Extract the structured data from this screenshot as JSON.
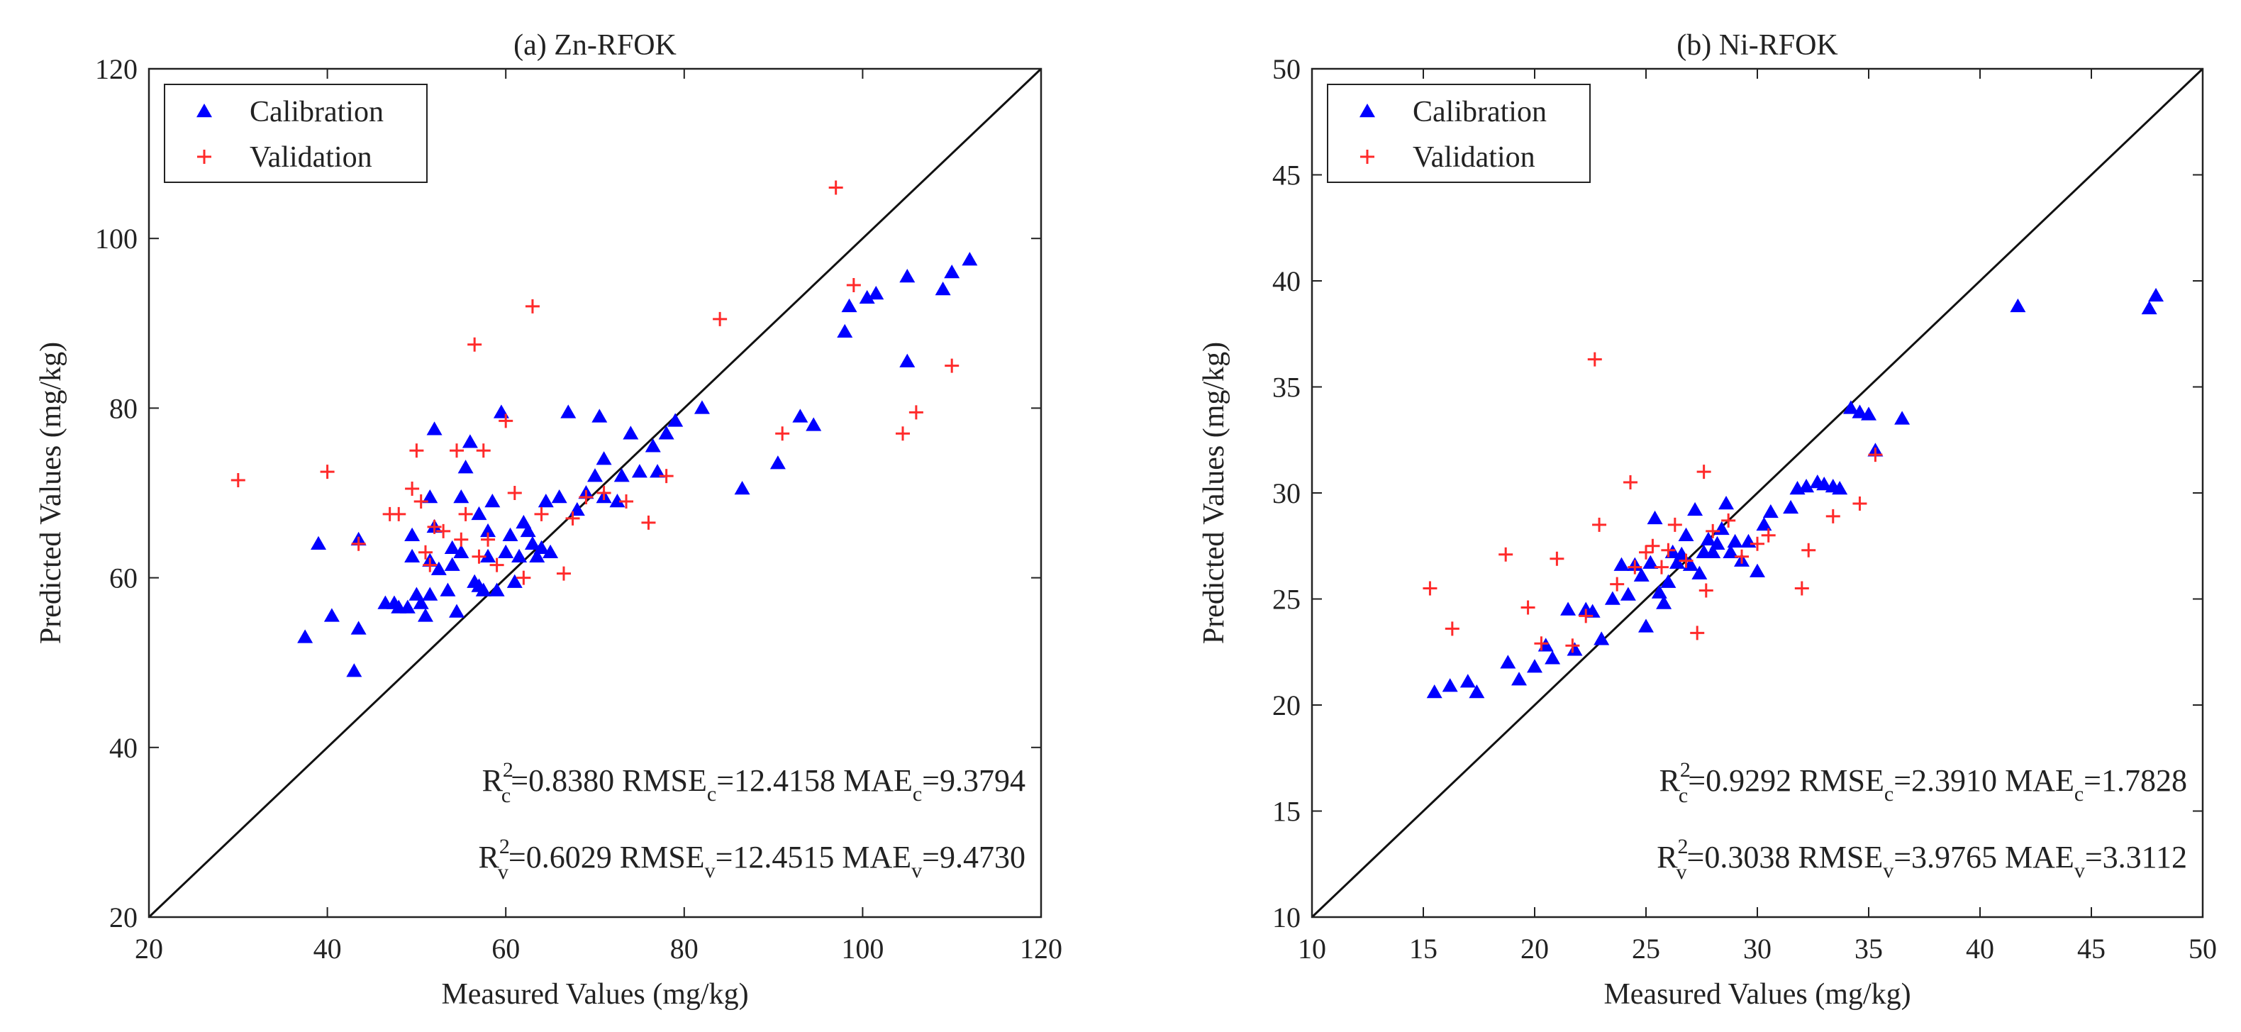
{
  "chart_data": [
    {
      "type": "scatter",
      "title": "(a) Zn-RFOK",
      "xlabel": "Measured Values (mg/kg)",
      "ylabel": "Predicted Values (mg/kg)",
      "xlim": [
        20,
        120
      ],
      "ylim": [
        20,
        120
      ],
      "xticks": [
        20,
        40,
        60,
        80,
        100,
        120
      ],
      "yticks": [
        20,
        40,
        60,
        80,
        100,
        120
      ],
      "grid": false,
      "reference_line": "y = x",
      "legend": {
        "position": "top-left",
        "entries": [
          {
            "label": "Calibration",
            "marker": "triangle",
            "color": "#0000ff"
          },
          {
            "label": "Validation",
            "marker": "plus",
            "color": "#ff2a2a"
          }
        ]
      },
      "metrics": {
        "calibration": {
          "r2_label": "R",
          "r2_sup": "2",
          "r2_sub": "c",
          "r2": "=0.8380",
          "rmse_label": " RMSE",
          "rmse_sub": "c",
          "rmse": "=12.4158",
          "mae_label": " MAE",
          "mae_sub": "c",
          "mae": "=9.3794"
        },
        "validation": {
          "r2_label": "R",
          "r2_sup": "2",
          "r2_sub": "v",
          "r2": "=0.6029",
          "rmse_label": " RMSE",
          "rmse_sub": "v",
          "rmse": "=12.4515",
          "mae_label": " MAE",
          "mae_sub": "v",
          "mae": "=9.4730"
        }
      },
      "series": [
        {
          "name": "Calibration",
          "marker": "triangle",
          "color": "#0000ff",
          "x": [
            37.5,
            39,
            40.5,
            43,
            43.5,
            43.5,
            46.5,
            47.5,
            48,
            49,
            49.5,
            49.5,
            50,
            50.5,
            51,
            51.5,
            51.5,
            51.5,
            52,
            52,
            52.5,
            53.5,
            54,
            54,
            54.5,
            55,
            55,
            55.5,
            56,
            56.5,
            57,
            57,
            57.5,
            58,
            58,
            58.5,
            59,
            59.5,
            60,
            60.5,
            61,
            61.5,
            62,
            62.5,
            63,
            63.5,
            64,
            64.5,
            65,
            66,
            67,
            68,
            69,
            70,
            70.5,
            71,
            71,
            72.5,
            73,
            74,
            75,
            76.5,
            77,
            78,
            79,
            82,
            86.5,
            90.5,
            93,
            94.5,
            98,
            98.5,
            100.5,
            101.5,
            105,
            105,
            109,
            110,
            112
          ],
          "y": [
            53,
            64,
            55.5,
            49,
            54,
            64.5,
            57,
            57,
            56.5,
            56.5,
            62.5,
            65,
            58,
            57,
            55.5,
            62,
            69.5,
            58,
            66,
            77.5,
            61,
            58.5,
            61.5,
            63.5,
            56,
            69.5,
            63,
            73,
            76,
            59.5,
            59,
            67.5,
            58.5,
            62.5,
            65.5,
            69,
            58.5,
            79.5,
            63,
            65,
            59.5,
            62.5,
            66.5,
            65.5,
            64,
            62.5,
            63.5,
            69,
            63,
            69.5,
            79.5,
            68,
            70,
            72,
            79,
            74,
            69.5,
            69,
            72,
            77,
            72.5,
            75.5,
            72.5,
            77,
            78.5,
            80,
            70.5,
            73.5,
            79,
            78,
            89,
            92,
            93,
            93.5,
            95.5,
            85.5,
            94,
            96,
            97.5
          ]
        },
        {
          "name": "Validation",
          "marker": "plus",
          "color": "#ff2a2a",
          "x": [
            30,
            40,
            43.5,
            47,
            48,
            49.5,
            50,
            50.5,
            51,
            51.5,
            52,
            53,
            54.5,
            55,
            55.5,
            56.5,
            57,
            57.5,
            58,
            59,
            60,
            61,
            62,
            63,
            64,
            66.5,
            67.5,
            69,
            71,
            73.5,
            76,
            78,
            84,
            91,
            97,
            99,
            104.5,
            106,
            110
          ],
          "y": [
            71.5,
            72.5,
            64,
            67.5,
            67.5,
            70.5,
            75,
            69,
            63,
            61.5,
            66,
            65.5,
            75,
            64.5,
            67.5,
            87.5,
            62.5,
            75,
            64.5,
            61.5,
            78.5,
            70,
            60,
            92,
            67.5,
            60.5,
            67,
            69.5,
            70,
            69,
            66.5,
            72,
            90.5,
            77,
            106,
            94.5,
            77,
            79.5,
            85
          ]
        }
      ]
    },
    {
      "type": "scatter",
      "title": "(b) Ni-RFOK",
      "xlabel": "Measured Values (mg/kg)",
      "ylabel": "Predicted Values (mg/kg)",
      "xlim": [
        10,
        50
      ],
      "ylim": [
        10,
        50
      ],
      "xticks": [
        10,
        15,
        20,
        25,
        30,
        35,
        40,
        45,
        50
      ],
      "yticks": [
        10,
        15,
        20,
        25,
        30,
        35,
        40,
        45,
        50
      ],
      "grid": false,
      "reference_line": "y = x",
      "legend": {
        "position": "top-left",
        "entries": [
          {
            "label": "Calibration",
            "marker": "triangle",
            "color": "#0000ff"
          },
          {
            "label": "Validation",
            "marker": "plus",
            "color": "#ff2a2a"
          }
        ]
      },
      "metrics": {
        "calibration": {
          "r2_label": "R",
          "r2_sup": "2",
          "r2_sub": "c",
          "r2": "=0.9292",
          "rmse_label": " RMSE",
          "rmse_sub": "c",
          "rmse": "=2.3910",
          "mae_label": " MAE",
          "mae_sub": "c",
          "mae": "=1.7828"
        },
        "validation": {
          "r2_label": "R",
          "r2_sup": "2",
          "r2_sub": "v",
          "r2": "=0.3038",
          "rmse_label": " RMSE",
          "rmse_sub": "v",
          "rmse": "=3.9765",
          "mae_label": " MAE",
          "mae_sub": "v",
          "mae": "=3.3112"
        }
      },
      "series": [
        {
          "name": "Calibration",
          "marker": "triangle",
          "color": "#0000ff",
          "x": [
            15.5,
            16.2,
            17,
            17.4,
            18.8,
            19.3,
            20,
            20.5,
            20.8,
            21.5,
            21.8,
            22.3,
            22.6,
            23,
            23.5,
            23.9,
            24.2,
            24.5,
            24.8,
            25,
            25.2,
            25.4,
            25.6,
            25.8,
            26,
            26.2,
            26.4,
            26.6,
            26.8,
            27,
            27.2,
            27.4,
            27.6,
            27.8,
            28,
            28.2,
            28.4,
            28.6,
            28.8,
            29,
            29.3,
            29.6,
            30,
            30.3,
            30.6,
            31.5,
            31.8,
            32.2,
            32.7,
            33,
            33.4,
            33.7,
            34.2,
            34.6,
            35,
            35.3,
            36.5,
            41.7,
            47.6,
            47.9
          ],
          "y": [
            20.6,
            20.9,
            21.1,
            20.6,
            22,
            21.2,
            21.8,
            22.8,
            22.2,
            24.5,
            22.6,
            24.5,
            24.4,
            23.1,
            25,
            26.6,
            25.2,
            26.6,
            26.1,
            23.7,
            26.7,
            28.8,
            25.3,
            24.8,
            25.8,
            27.2,
            26.7,
            27.1,
            28,
            26.6,
            29.2,
            26.2,
            27.2,
            27.8,
            27.2,
            27.6,
            28.3,
            29.5,
            27.2,
            27.7,
            26.8,
            27.7,
            26.3,
            28.5,
            29.1,
            29.3,
            30.2,
            30.3,
            30.5,
            30.4,
            30.3,
            30.2,
            34,
            33.8,
            33.7,
            32,
            33.5,
            38.8,
            38.7,
            39.3
          ]
        },
        {
          "name": "Validation",
          "marker": "plus",
          "color": "#ff2a2a",
          "x": [
            15.3,
            16.3,
            18.7,
            19.7,
            20.3,
            21,
            21.7,
            22.3,
            22.7,
            22.9,
            23.7,
            24.3,
            24.5,
            25,
            25.3,
            25.7,
            26,
            26.3,
            26.8,
            27.3,
            27.6,
            27.7,
            28,
            28.7,
            29.3,
            30,
            30.5,
            32,
            32.3,
            33.4,
            34.6,
            35.3
          ],
          "y": [
            25.5,
            23.6,
            27.1,
            24.6,
            22.9,
            26.9,
            22.8,
            24.2,
            36.3,
            28.5,
            25.7,
            30.5,
            26.5,
            27.2,
            27.5,
            26.5,
            27.3,
            28.5,
            26.8,
            23.4,
            31,
            25.4,
            28.2,
            28.7,
            27,
            27.6,
            28,
            25.5,
            27.3,
            28.9,
            29.5,
            31.8
          ]
        }
      ]
    }
  ]
}
